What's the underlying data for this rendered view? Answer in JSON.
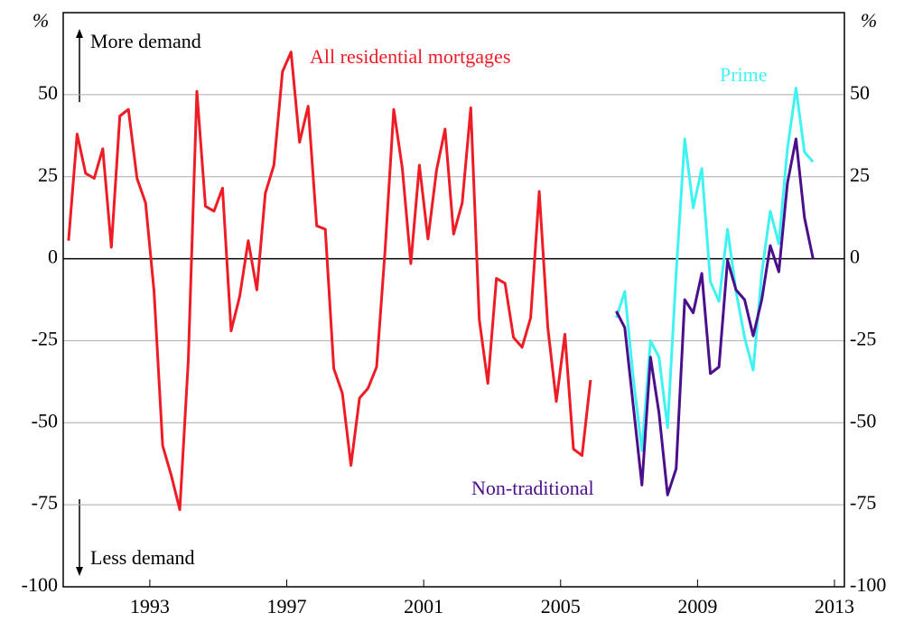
{
  "chart_data": {
    "type": "line",
    "y_unit_left": "%",
    "y_unit_right": "%",
    "annotations": [
      "More demand",
      "Less demand"
    ],
    "x": [
      1990.625,
      1990.875,
      1991.125,
      1991.375,
      1991.625,
      1991.875,
      1992.125,
      1992.375,
      1992.625,
      1992.875,
      1993.125,
      1993.375,
      1993.625,
      1993.875,
      1994.125,
      1994.375,
      1994.625,
      1994.875,
      1995.125,
      1995.375,
      1995.625,
      1995.875,
      1996.125,
      1996.375,
      1996.625,
      1996.875,
      1997.125,
      1997.375,
      1997.625,
      1997.875,
      1998.125,
      1998.375,
      1998.625,
      1998.875,
      1999.125,
      1999.375,
      1999.625,
      1999.875,
      2000.125,
      2000.375,
      2000.625,
      2000.875,
      2001.125,
      2001.375,
      2001.625,
      2001.875,
      2002.125,
      2002.375,
      2002.625,
      2002.875,
      2003.125,
      2003.375,
      2003.625,
      2003.875,
      2004.125,
      2004.375,
      2004.625,
      2004.875,
      2005.125,
      2005.375,
      2005.625,
      2005.875,
      2006.125,
      2006.375,
      2006.625,
      2006.875,
      2007.125,
      2007.375,
      2007.625,
      2007.875,
      2008.125,
      2008.375,
      2008.625,
      2008.875,
      2009.125,
      2009.375,
      2009.625,
      2009.875,
      2010.125,
      2010.375,
      2010.625,
      2010.875,
      2011.125,
      2011.375,
      2011.625,
      2011.875,
      2012.125,
      2012.375,
      2012.625,
      2012.875
    ],
    "series": [
      {
        "name": "All residential mortgages",
        "color": "#ee1c25",
        "values": [
          5.5,
          38,
          26,
          24.5,
          33.5,
          3.5,
          43.5,
          45.5,
          24.5,
          17,
          -10,
          -57,
          -66,
          -76.5,
          -31,
          51,
          16,
          14.5,
          21.5,
          -22,
          -11.5,
          5.5,
          -9.5,
          20,
          28.5,
          57,
          63,
          35.5,
          46.5,
          10,
          9,
          -33.5,
          -41,
          -63,
          -42.5,
          -39.5,
          -33,
          3,
          45.5,
          27.5,
          -1.5,
          28.5,
          6,
          27,
          39.5,
          7.5,
          17,
          46,
          -18.5,
          -38,
          -6,
          -7.5,
          -24,
          -27,
          -18,
          20.5,
          -21,
          -43.5,
          -23,
          -58,
          -60,
          -37,
          null,
          null,
          null,
          null,
          null,
          null,
          null,
          null,
          null,
          null,
          null,
          null,
          null,
          null,
          null,
          null,
          null,
          null,
          null,
          null,
          null,
          null,
          null,
          null,
          null,
          null,
          null,
          null
        ]
      },
      {
        "name": "Prime",
        "color": "#3ff3f3",
        "values": [
          null,
          null,
          null,
          null,
          null,
          null,
          null,
          null,
          null,
          null,
          null,
          null,
          null,
          null,
          null,
          null,
          null,
          null,
          null,
          null,
          null,
          null,
          null,
          null,
          null,
          null,
          null,
          null,
          null,
          null,
          null,
          null,
          null,
          null,
          null,
          null,
          null,
          null,
          null,
          null,
          null,
          null,
          null,
          null,
          null,
          null,
          null,
          null,
          null,
          null,
          null,
          null,
          null,
          null,
          null,
          null,
          null,
          null,
          null,
          null,
          null,
          null,
          null,
          null,
          -18,
          -10,
          -36.5,
          -58.5,
          -25,
          -30,
          -51.5,
          -4.5,
          36.5,
          15.5,
          27.5,
          -7,
          -13,
          9,
          -10,
          -24,
          -34,
          -4.5,
          14.5,
          4.5,
          33.5,
          52,
          32.5,
          29.5,
          null,
          null
        ]
      },
      {
        "name": "Non-traditional",
        "color": "#4b0f8c",
        "values": [
          null,
          null,
          null,
          null,
          null,
          null,
          null,
          null,
          null,
          null,
          null,
          null,
          null,
          null,
          null,
          null,
          null,
          null,
          null,
          null,
          null,
          null,
          null,
          null,
          null,
          null,
          null,
          null,
          null,
          null,
          null,
          null,
          null,
          null,
          null,
          null,
          null,
          null,
          null,
          null,
          null,
          null,
          null,
          null,
          null,
          null,
          null,
          null,
          null,
          null,
          null,
          null,
          null,
          null,
          null,
          null,
          null,
          null,
          null,
          null,
          null,
          null,
          null,
          null,
          -16,
          -21,
          -45,
          -69,
          -30,
          -47,
          -72,
          -64,
          -12.5,
          -16.5,
          -4.5,
          -35,
          -33,
          -0.5,
          -9.5,
          -12.5,
          -23.5,
          -12.5,
          4,
          -4,
          23,
          36.5,
          12.5,
          0,
          null,
          null
        ]
      }
    ],
    "xlim": [
      1990.47,
      2013.29
    ],
    "xticks": [
      1993,
      1997,
      2001,
      2005,
      2009,
      2013
    ],
    "ylim": [
      -100,
      75
    ],
    "yticks": [
      -100,
      -75,
      -50,
      -25,
      0,
      25,
      50
    ],
    "grid": true
  }
}
